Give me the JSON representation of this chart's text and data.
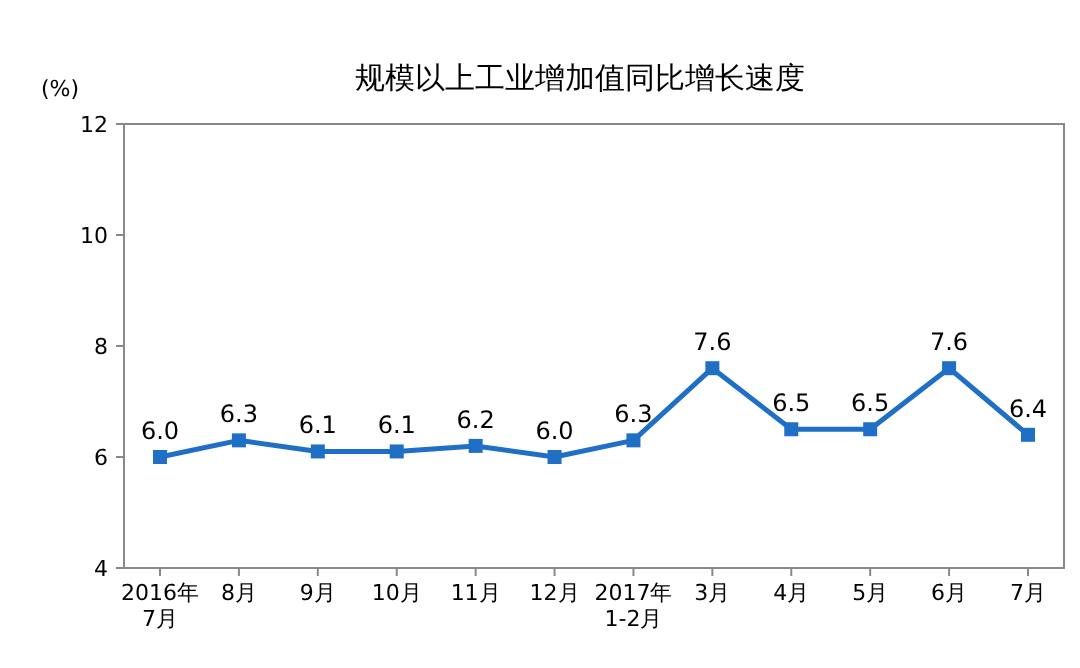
{
  "chart_data": {
    "type": "line",
    "title": "规模以上工业增加值同比增长速度",
    "ylabel": "(%)",
    "categories": [
      "2016年\n7月",
      "8月",
      "9月",
      "10月",
      "11月",
      "12月",
      "2017年\n1-2月",
      "3月",
      "4月",
      "5月",
      "6月",
      "7月"
    ],
    "series": [
      {
        "color": "#1f6fc6",
        "values": [
          6.0,
          6.3,
          6.1,
          6.1,
          6.2,
          6.0,
          6.3,
          7.6,
          6.5,
          6.5,
          7.6,
          6.4
        ],
        "value_labels": [
          "6.0",
          "6.3",
          "6.1",
          "6.1",
          "6.2",
          "6.0",
          "6.3",
          "7.6",
          "6.5",
          "6.5",
          "7.6",
          "6.4"
        ]
      }
    ],
    "ylim": [
      4,
      12
    ],
    "yticks": [
      4,
      6,
      8,
      10,
      12
    ],
    "marker": "square",
    "line_style": "solid"
  }
}
